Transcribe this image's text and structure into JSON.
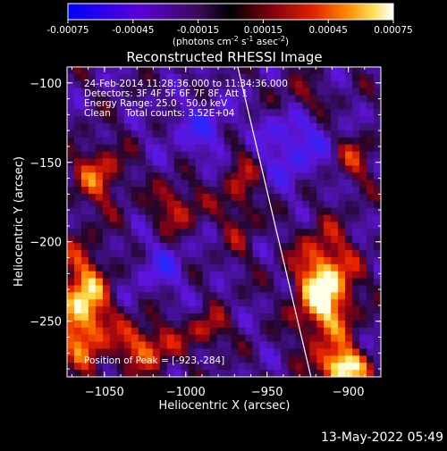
{
  "colorbar": {
    "tick_labels": [
      "-0.00075",
      "-0.00045",
      "-0.00015",
      "0.00015",
      "0.00045",
      "0.00075"
    ],
    "tick_values": [
      -0.00075,
      -0.00045,
      -0.00015,
      0.00015,
      0.00045,
      0.00075
    ],
    "range": [
      -0.00075,
      0.00075
    ],
    "unit_prefix": "(photons cm",
    "unit_exp1": "-2",
    "unit_mid": " s",
    "unit_exp2": "-1",
    "unit_mid2": " asec",
    "unit_exp3": "-2",
    "unit_suffix": ")"
  },
  "chart_data": {
    "type": "heatmap",
    "title": "Reconstructed RHESSI Image",
    "xlabel": "Heliocentric X (arcsec)",
    "ylabel": "Heliocentric Y (arcsec)",
    "xlim": [
      -1073,
      -880
    ],
    "ylim": [
      -285,
      -90
    ],
    "x_ticks": [
      -1050,
      -1000,
      -950,
      -900
    ],
    "x_tick_labels": [
      "−1050",
      "−1000",
      "−950",
      "−900"
    ],
    "y_ticks": [
      -100,
      -150,
      -200,
      -250
    ],
    "y_tick_labels": [
      "−100",
      "−150",
      "−200",
      "−250"
    ],
    "peak": [
      -923,
      -284
    ],
    "limb_line": [
      [
        -968,
        -90
      ],
      [
        -923,
        -285
      ]
    ]
  },
  "annotations": {
    "time_range": "24-Feb-2014 11:28:36.000 to 11:34:36.000",
    "detectors": "Detectors: 3F 4F 5F 6F 7F 8F, Att 1",
    "energy": "Energy Range: 25.0 - 50.0 keV",
    "clean": "Clean     Total counts: 3.52E+04",
    "peak_label": "Position of Peak = [-923,-284]"
  },
  "timestamp": "13-May-2022 05:49",
  "colors": {
    "background": "#000000",
    "axes": "#ffffff",
    "limb": "#ffffff"
  }
}
